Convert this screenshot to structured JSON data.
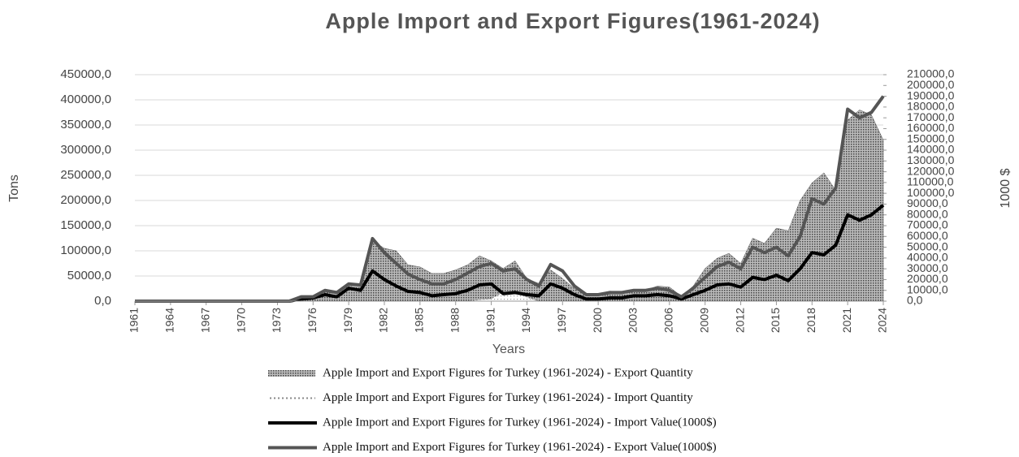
{
  "chart_data": {
    "type": "combo",
    "title": "Apple Import and Export Figures(1961-2024)",
    "x_label": "Years",
    "y_label": "Tons",
    "y2_label": "1000 $",
    "x": [
      1961,
      1962,
      1963,
      1964,
      1965,
      1966,
      1967,
      1968,
      1969,
      1970,
      1971,
      1972,
      1973,
      1974,
      1975,
      1976,
      1977,
      1978,
      1979,
      1980,
      1981,
      1982,
      1983,
      1984,
      1985,
      1986,
      1987,
      1988,
      1989,
      1990,
      1991,
      1992,
      1993,
      1994,
      1995,
      1996,
      1997,
      1998,
      1999,
      2000,
      2001,
      2002,
      2003,
      2004,
      2005,
      2006,
      2007,
      2008,
      2009,
      2010,
      2011,
      2012,
      2013,
      2014,
      2015,
      2016,
      2017,
      2018,
      2019,
      2020,
      2021,
      2022,
      2023,
      2024
    ],
    "xlim": [
      1961,
      2024
    ],
    "xticks": [
      1961,
      1964,
      1967,
      1970,
      1973,
      1976,
      1979,
      1982,
      1985,
      1988,
      1991,
      1994,
      1997,
      2000,
      2003,
      2006,
      2009,
      2012,
      2015,
      2018,
      2021,
      2024
    ],
    "ylim": [
      0,
      450000
    ],
    "yticks": [
      {
        "value": 0,
        "label": "0,0"
      },
      {
        "value": 50000,
        "label": "50000,0"
      },
      {
        "value": 100000,
        "label": "100000,0"
      },
      {
        "value": 150000,
        "label": "150000,0"
      },
      {
        "value": 200000,
        "label": "200000,0"
      },
      {
        "value": 250000,
        "label": "250000,0"
      },
      {
        "value": 300000,
        "label": "300000,0"
      },
      {
        "value": 350000,
        "label": "350000,0"
      },
      {
        "value": 400000,
        "label": "400000,0"
      },
      {
        "value": 450000,
        "label": "450000,0"
      }
    ],
    "y2lim": [
      0,
      210000
    ],
    "y2ticks": [
      {
        "value": 0,
        "label": "0,0"
      },
      {
        "value": 10000,
        "label": "10000,0"
      },
      {
        "value": 20000,
        "label": "20000,0"
      },
      {
        "value": 30000,
        "label": "30000,0"
      },
      {
        "value": 40000,
        "label": "40000,0"
      },
      {
        "value": 50000,
        "label": "50000,0"
      },
      {
        "value": 60000,
        "label": "60000,0"
      },
      {
        "value": 70000,
        "label": "70000,0"
      },
      {
        "value": 80000,
        "label": "80000,0"
      },
      {
        "value": 90000,
        "label": "90000,0"
      },
      {
        "value": 100000,
        "label": "100000,0"
      },
      {
        "value": 110000,
        "label": "110000,0"
      },
      {
        "value": 120000,
        "label": "120000,0"
      },
      {
        "value": 130000,
        "label": "130000,0"
      },
      {
        "value": 140000,
        "label": "140000,0"
      },
      {
        "value": 150000,
        "label": "150000,0"
      },
      {
        "value": 160000,
        "label": "160000,0"
      },
      {
        "value": 170000,
        "label": "170000,0"
      },
      {
        "value": 180000,
        "label": "180000,0"
      },
      {
        "value": 190000,
        "label": "190000,0"
      },
      {
        "value": 200000,
        "label": "200000,0"
      },
      {
        "value": 210000,
        "label": "210000,0"
      }
    ],
    "grid": true,
    "series": [
      {
        "name": "Apple Import and Export Figures for Turkey (1961-2024) - Export Quantity",
        "type": "area",
        "color": "#555555",
        "values": [
          0,
          0,
          0,
          0,
          0,
          0,
          0,
          0,
          0,
          0,
          0,
          0,
          0,
          2000,
          8000,
          10000,
          22000,
          15000,
          35000,
          30000,
          120000,
          105000,
          100000,
          72000,
          68000,
          55000,
          55000,
          62000,
          72000,
          90000,
          80000,
          65000,
          80000,
          45000,
          35000,
          62000,
          45000,
          25000,
          12000,
          15000,
          20000,
          18000,
          22000,
          22000,
          30000,
          28000,
          10000,
          30000,
          65000,
          85000,
          95000,
          75000,
          125000,
          115000,
          145000,
          140000,
          200000,
          235000,
          255000,
          220000,
          360000,
          380000,
          370000,
          320000
        ]
      },
      {
        "name": "Apple Import and Export Figures for Turkey (1961-2024) - Import Quantity",
        "type": "dotted-area",
        "color": "#888888",
        "values": [
          0,
          0,
          0,
          0,
          0,
          0,
          0,
          0,
          0,
          0,
          0,
          0,
          0,
          0,
          0,
          0,
          0,
          0,
          0,
          0,
          0,
          0,
          0,
          0,
          0,
          0,
          0,
          0,
          0,
          3000,
          5000,
          18000,
          18000,
          8000,
          0,
          0,
          0,
          0,
          0,
          0,
          0,
          0,
          0,
          0,
          0,
          0,
          0,
          0,
          0,
          0,
          0,
          0,
          0,
          0,
          0,
          0,
          0,
          0,
          0,
          0,
          0,
          0,
          0,
          0
        ]
      },
      {
        "name": "Apple Import and Export Figures for Turkey (1961-2024) - Import Value(1000$)",
        "type": "line",
        "axis": "y2",
        "color": "#000000",
        "values": [
          0,
          0,
          0,
          0,
          0,
          0,
          0,
          0,
          0,
          0,
          0,
          0,
          0,
          0,
          2000,
          3000,
          6000,
          4000,
          12000,
          10000,
          28000,
          20000,
          14000,
          9000,
          8000,
          5000,
          6000,
          7000,
          10000,
          15000,
          16000,
          7000,
          8000,
          6000,
          5000,
          16000,
          12000,
          6000,
          2000,
          2000,
          3000,
          3000,
          5000,
          5000,
          6000,
          5000,
          2000,
          6000,
          10000,
          15000,
          16000,
          13000,
          22000,
          20000,
          24000,
          19000,
          30000,
          45000,
          43000,
          52000,
          80000,
          75000,
          80000,
          89000
        ]
      },
      {
        "name": "Apple Import and Export Figures for Turkey (1961-2024) - Export Value(1000$)",
        "type": "line",
        "axis": "y2",
        "color": "#555555",
        "values": [
          0,
          0,
          0,
          0,
          0,
          0,
          0,
          0,
          0,
          0,
          0,
          0,
          0,
          0,
          4000,
          4000,
          10000,
          8000,
          16000,
          15000,
          58000,
          45000,
          35000,
          25000,
          20000,
          16000,
          16000,
          20000,
          26000,
          32000,
          35000,
          28000,
          30000,
          20000,
          14000,
          34000,
          28000,
          14000,
          6000,
          6000,
          8000,
          8000,
          10000,
          10000,
          12000,
          10000,
          4000,
          12000,
          22000,
          32000,
          36000,
          30000,
          50000,
          45000,
          50000,
          42000,
          60000,
          95000,
          90000,
          105000,
          178000,
          170000,
          175000,
          190000
        ]
      }
    ]
  }
}
